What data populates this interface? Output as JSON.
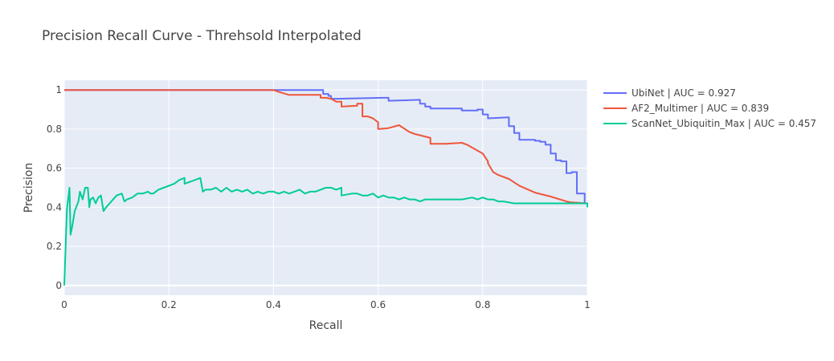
{
  "chart_data": {
    "type": "line",
    "title": "Precision Recall Curve - Threhsold Interpolated",
    "xlabel": "Recall",
    "ylabel": "Precision",
    "xlim": [
      0,
      1
    ],
    "ylim": [
      -0.05,
      1.05
    ],
    "xticks": [
      0,
      0.2,
      0.4,
      0.6,
      0.8,
      1
    ],
    "xtick_labels": [
      "0",
      "0.2",
      "0.4",
      "0.6",
      "0.8",
      "1"
    ],
    "yticks": [
      0,
      0.2,
      0.4,
      0.6,
      0.8,
      1
    ],
    "ytick_labels": [
      "0",
      "0.2",
      "0.4",
      "0.6",
      "0.8",
      "1"
    ],
    "grid": true,
    "legend_position": "top-right outside",
    "plot_background": "#e5ecf6",
    "series": [
      {
        "name": "UbiNet | AUC = 0.927",
        "color": "#636efa",
        "x": [
          0,
          0.495,
          0.495,
          0.505,
          0.505,
          0.51,
          0.51,
          0.52,
          0.61,
          0.62,
          0.62,
          0.68,
          0.68,
          0.69,
          0.69,
          0.7,
          0.7,
          0.71,
          0.71,
          0.76,
          0.76,
          0.79,
          0.79,
          0.8,
          0.8,
          0.81,
          0.81,
          0.85,
          0.85,
          0.86,
          0.86,
          0.87,
          0.87,
          0.88,
          0.88,
          0.9,
          0.9,
          0.91,
          0.91,
          0.92,
          0.92,
          0.93,
          0.93,
          0.94,
          0.94,
          0.95,
          0.95,
          0.96,
          0.96,
          0.97,
          0.97,
          0.98,
          0.98,
          0.99,
          0.99,
          0.995,
          0.995,
          1.0,
          1.0
        ],
        "y": [
          1.0,
          1.0,
          0.98,
          0.98,
          0.97,
          0.97,
          0.955,
          0.955,
          0.96,
          0.96,
          0.945,
          0.95,
          0.93,
          0.93,
          0.915,
          0.915,
          0.905,
          0.905,
          0.905,
          0.905,
          0.895,
          0.895,
          0.9,
          0.9,
          0.875,
          0.875,
          0.855,
          0.86,
          0.815,
          0.815,
          0.78,
          0.78,
          0.745,
          0.745,
          0.745,
          0.745,
          0.74,
          0.74,
          0.735,
          0.735,
          0.72,
          0.72,
          0.675,
          0.675,
          0.64,
          0.64,
          0.635,
          0.635,
          0.575,
          0.575,
          0.58,
          0.58,
          0.47,
          0.47,
          0.47,
          0.47,
          0.42,
          0.42,
          0.41
        ]
      },
      {
        "name": "AF2_Multimer | AUC = 0.839",
        "color": "#ef553b",
        "x": [
          0,
          0.4,
          0.41,
          0.43,
          0.49,
          0.49,
          0.5,
          0.51,
          0.52,
          0.53,
          0.53,
          0.56,
          0.56,
          0.57,
          0.57,
          0.58,
          0.59,
          0.59,
          0.6,
          0.6,
          0.6,
          0.6,
          0.62,
          0.62,
          0.64,
          0.64,
          0.66,
          0.66,
          0.67,
          0.67,
          0.7,
          0.7,
          0.73,
          0.76,
          0.77,
          0.79,
          0.8,
          0.81,
          0.81,
          0.82,
          0.83,
          0.85,
          0.87,
          0.9,
          0.93,
          0.96,
          0.97,
          1.0
        ],
        "y": [
          1.0,
          1.0,
          0.99,
          0.975,
          0.975,
          0.96,
          0.96,
          0.955,
          0.94,
          0.94,
          0.915,
          0.92,
          0.93,
          0.93,
          0.865,
          0.865,
          0.855,
          0.855,
          0.835,
          0.835,
          0.8,
          0.8,
          0.805,
          0.805,
          0.82,
          0.82,
          0.785,
          0.785,
          0.775,
          0.775,
          0.755,
          0.725,
          0.725,
          0.73,
          0.72,
          0.69,
          0.675,
          0.635,
          0.625,
          0.58,
          0.565,
          0.545,
          0.51,
          0.475,
          0.455,
          0.43,
          0.425,
          0.42
        ]
      },
      {
        "name": "ScanNet_Ubiquitin_Max | AUC = 0.457",
        "color": "#00cc96",
        "x": [
          0,
          0.005,
          0.01,
          0.012,
          0.015,
          0.02,
          0.027,
          0.03,
          0.035,
          0.04,
          0.045,
          0.048,
          0.05,
          0.055,
          0.06,
          0.065,
          0.07,
          0.075,
          0.08,
          0.09,
          0.1,
          0.11,
          0.115,
          0.12,
          0.13,
          0.14,
          0.15,
          0.16,
          0.165,
          0.17,
          0.18,
          0.19,
          0.2,
          0.21,
          0.22,
          0.23,
          0.23,
          0.24,
          0.25,
          0.26,
          0.265,
          0.27,
          0.28,
          0.29,
          0.3,
          0.31,
          0.32,
          0.33,
          0.34,
          0.35,
          0.36,
          0.37,
          0.38,
          0.39,
          0.4,
          0.41,
          0.42,
          0.43,
          0.44,
          0.45,
          0.46,
          0.47,
          0.48,
          0.49,
          0.5,
          0.51,
          0.52,
          0.53,
          0.53,
          0.55,
          0.56,
          0.57,
          0.58,
          0.59,
          0.6,
          0.61,
          0.62,
          0.63,
          0.64,
          0.65,
          0.66,
          0.67,
          0.68,
          0.69,
          0.7,
          0.72,
          0.74,
          0.76,
          0.78,
          0.79,
          0.8,
          0.81,
          0.82,
          0.83,
          0.84,
          0.86,
          0.88,
          0.9,
          0.92,
          0.94,
          0.96,
          0.98,
          1.0,
          1.0
        ],
        "y": [
          0,
          0.39,
          0.5,
          0.26,
          0.3,
          0.38,
          0.43,
          0.48,
          0.44,
          0.5,
          0.5,
          0.4,
          0.44,
          0.45,
          0.42,
          0.45,
          0.46,
          0.38,
          0.4,
          0.43,
          0.46,
          0.47,
          0.43,
          0.44,
          0.45,
          0.47,
          0.47,
          0.48,
          0.47,
          0.47,
          0.49,
          0.5,
          0.51,
          0.52,
          0.54,
          0.55,
          0.52,
          0.53,
          0.54,
          0.55,
          0.48,
          0.49,
          0.49,
          0.5,
          0.48,
          0.5,
          0.48,
          0.49,
          0.48,
          0.49,
          0.47,
          0.48,
          0.47,
          0.48,
          0.48,
          0.47,
          0.48,
          0.47,
          0.48,
          0.49,
          0.47,
          0.48,
          0.48,
          0.49,
          0.5,
          0.5,
          0.49,
          0.5,
          0.46,
          0.47,
          0.47,
          0.46,
          0.46,
          0.47,
          0.45,
          0.46,
          0.45,
          0.45,
          0.44,
          0.45,
          0.44,
          0.44,
          0.43,
          0.44,
          0.44,
          0.44,
          0.44,
          0.44,
          0.45,
          0.44,
          0.45,
          0.44,
          0.44,
          0.43,
          0.43,
          0.42,
          0.42,
          0.42,
          0.42,
          0.42,
          0.42,
          0.42,
          0.42,
          0.4
        ]
      }
    ]
  }
}
